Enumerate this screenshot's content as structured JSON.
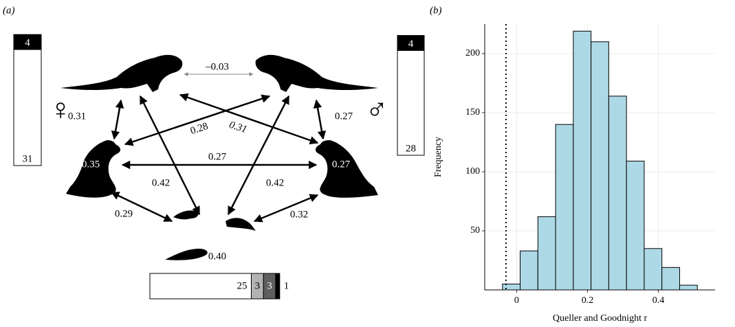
{
  "panel_a": {
    "label": "(a)",
    "female_symbol": "♀",
    "male_symbol": "♂",
    "edge_labels": [
      "–0.03",
      "0.31",
      "0.27",
      "0.28",
      "0.31",
      "0.27",
      "0.42",
      "0.42",
      "0.29",
      "0.32"
    ],
    "within_labels": [
      "0.35",
      "0.27",
      "0.40"
    ],
    "bars": {
      "female": {
        "values": [
          31,
          4
        ],
        "colors": [
          "#ffffff",
          "#000000"
        ]
      },
      "male": {
        "values": [
          28,
          4
        ],
        "colors": [
          "#ffffff",
          "#000000"
        ]
      },
      "pups": {
        "values": [
          25,
          3,
          3,
          1
        ],
        "colors": [
          "#ffffff",
          "#b3b3b3",
          "#5f5f5f",
          "#000000"
        ]
      }
    }
  },
  "chart_data": {
    "type": "histogram",
    "label": "(b)",
    "bins": [
      -0.04,
      0.01,
      0.06,
      0.11,
      0.16,
      0.21,
      0.26,
      0.31,
      0.36,
      0.41,
      0.46,
      0.51
    ],
    "values": [
      5,
      33,
      62,
      140,
      219,
      210,
      164,
      109,
      35,
      19,
      4
    ],
    "color": "#add8e6",
    "edge_color": "#000000",
    "xlim": [
      -0.09,
      0.56
    ],
    "xticks": [
      0,
      0.2,
      0.4
    ],
    "ylim": [
      0,
      225
    ],
    "yticks": [
      50,
      100,
      150,
      200
    ],
    "grid": true,
    "reference_line": -0.03,
    "xlabel": "Queller and Goodnight r",
    "ylabel": "Frequency"
  }
}
